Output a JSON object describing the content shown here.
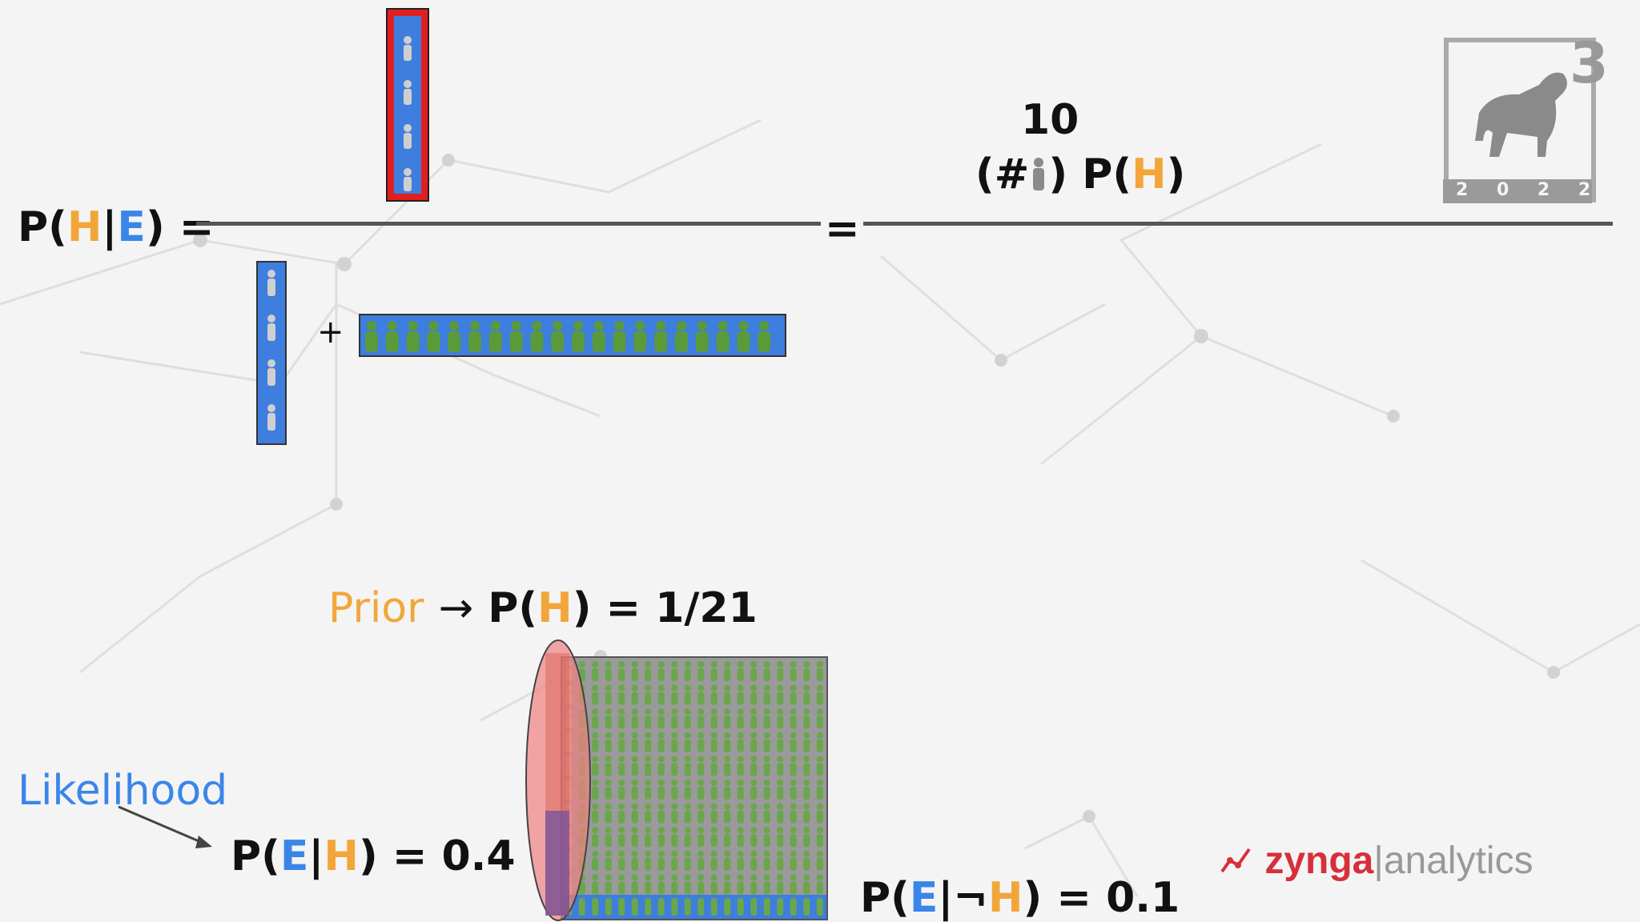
{
  "colors": {
    "orange": "#f2a63a",
    "blue": "#3a86e8",
    "panel_blue": "#3d7ede",
    "highlight_red": "#e01f1f",
    "person_gray": "#cfcfcf",
    "person_green": "#5b9a3a",
    "zynga_red": "#d6303a"
  },
  "equation": {
    "lhs_p": "P(",
    "lhs_h": "H",
    "lhs_bar": "|",
    "lhs_e": "E",
    "lhs_close": ") =",
    "equals": "=",
    "plus": "+",
    "rhs_number": "10",
    "rhs_open": "(#",
    "rhs_close": ") P(",
    "rhs_h": "H",
    "rhs_end": ")"
  },
  "prior": {
    "label": "Prior",
    "arrow": "→",
    "expr_p": "P(",
    "expr_h": "H",
    "expr_value": ") = 1/21"
  },
  "likelihood": {
    "label": "Likelihood",
    "expr_p": "P(",
    "expr_e": "E",
    "expr_bar": "|",
    "expr_h": "H",
    "expr_value": ") = 0.4"
  },
  "not_likelihood": {
    "expr_p": "P(",
    "expr_e": "E",
    "expr_bar": "|",
    "expr_not": "¬",
    "expr_h": "H",
    "expr_value": ") = 0.1"
  },
  "badge": {
    "digit": "3",
    "year": "2 0 2 2"
  },
  "brand": {
    "name": "zynga",
    "sep": "|",
    "suffix": "analytics"
  }
}
